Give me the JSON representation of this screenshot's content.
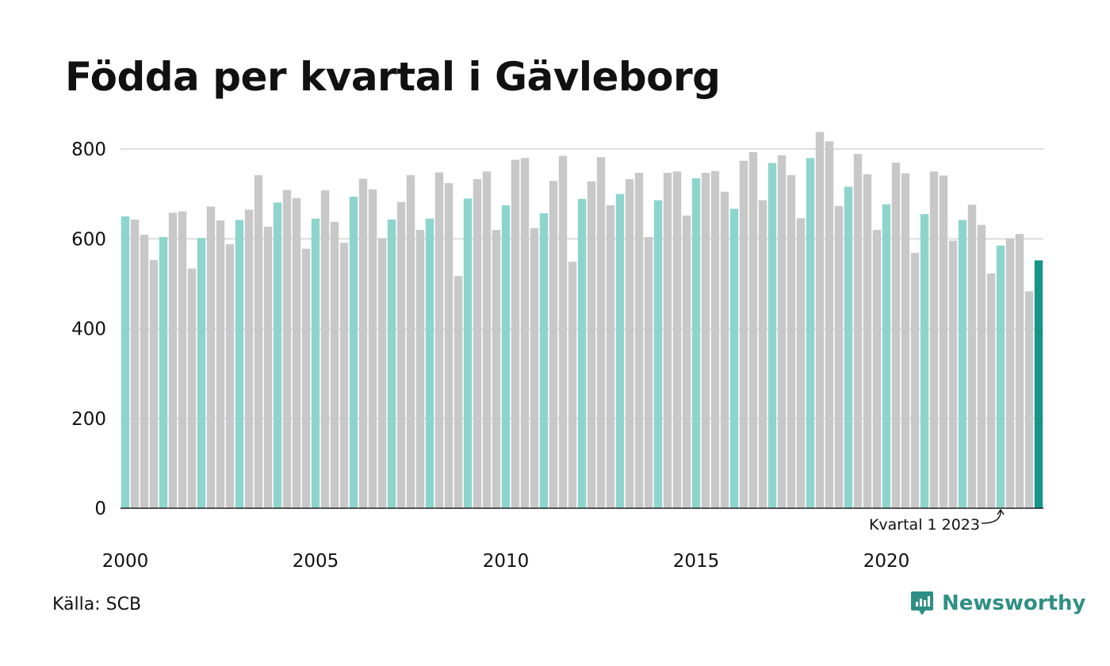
{
  "title": "Födda per kvartal i Gävleborg",
  "source": "Källa: SCB",
  "brand": {
    "name": "Newsworthy",
    "icon": "bar-chart-bubble-icon",
    "color": "#2f8f84"
  },
  "annotation": {
    "text": "Kvartal 1 2023",
    "target_index": 92
  },
  "colors": {
    "q1": "#8dd5cc",
    "other": "#c8c8c8",
    "highlight": "#16958a",
    "grid": "#dddddd",
    "axis": "#222222"
  },
  "chart_data": {
    "type": "bar",
    "title": "Födda per kvartal i Gävleborg",
    "xlabel": "",
    "ylabel": "",
    "ylim": [
      0,
      800
    ],
    "yticks": [
      0,
      200,
      400,
      600,
      800
    ],
    "xticks": [
      "2000",
      "2005",
      "2010",
      "2015",
      "2020"
    ],
    "start_year": 2000,
    "grid": true,
    "categories": [
      "2000 K1",
      "2000 K2",
      "2000 K3",
      "2000 K4",
      "2001 K1",
      "2001 K2",
      "2001 K3",
      "2001 K4",
      "2002 K1",
      "2002 K2",
      "2002 K3",
      "2002 K4",
      "2003 K1",
      "2003 K2",
      "2003 K3",
      "2003 K4",
      "2004 K1",
      "2004 K2",
      "2004 K3",
      "2004 K4",
      "2005 K1",
      "2005 K2",
      "2005 K3",
      "2005 K4",
      "2006 K1",
      "2006 K2",
      "2006 K3",
      "2006 K4",
      "2007 K1",
      "2007 K2",
      "2007 K3",
      "2007 K4",
      "2008 K1",
      "2008 K2",
      "2008 K3",
      "2008 K4",
      "2009 K1",
      "2009 K2",
      "2009 K3",
      "2009 K4",
      "2010 K1",
      "2010 K2",
      "2010 K3",
      "2010 K4",
      "2011 K1",
      "2011 K2",
      "2011 K3",
      "2011 K4",
      "2012 K1",
      "2012 K2",
      "2012 K3",
      "2012 K4",
      "2013 K1",
      "2013 K2",
      "2013 K3",
      "2013 K4",
      "2014 K1",
      "2014 K2",
      "2014 K3",
      "2014 K4",
      "2015 K1",
      "2015 K2",
      "2015 K3",
      "2015 K4",
      "2016 K1",
      "2016 K2",
      "2016 K3",
      "2016 K4",
      "2017 K1",
      "2017 K2",
      "2017 K3",
      "2017 K4",
      "2018 K1",
      "2018 K2",
      "2018 K3",
      "2018 K4",
      "2019 K1",
      "2019 K2",
      "2019 K3",
      "2019 K4",
      "2020 K1",
      "2020 K2",
      "2020 K3",
      "2020 K4",
      "2021 K1",
      "2021 K2",
      "2021 K3",
      "2021 K4",
      "2022 K1",
      "2022 K2",
      "2022 K3",
      "2022 K4",
      "2023 K1",
      "2023 K2",
      "2023 K3",
      "2023 K4",
      "2024 K1"
    ],
    "values": [
      650,
      643,
      609,
      553,
      604,
      658,
      661,
      534,
      602,
      672,
      641,
      588,
      642,
      665,
      742,
      627,
      681,
      709,
      691,
      578,
      645,
      708,
      638,
      591,
      694,
      734,
      710,
      601,
      643,
      682,
      742,
      620,
      645,
      748,
      724,
      517,
      690,
      733,
      750,
      620,
      675,
      776,
      780,
      624,
      657,
      729,
      785,
      549,
      689,
      728,
      782,
      675,
      700,
      733,
      747,
      604,
      686,
      747,
      750,
      652,
      735,
      747,
      751,
      705,
      667,
      774,
      793,
      686,
      769,
      786,
      742,
      646,
      780,
      838,
      817,
      673,
      716,
      789,
      744,
      620,
      677,
      770,
      746,
      569,
      655,
      750,
      741,
      596,
      642,
      676,
      631,
      523,
      585,
      601,
      611,
      483,
      552
    ]
  }
}
